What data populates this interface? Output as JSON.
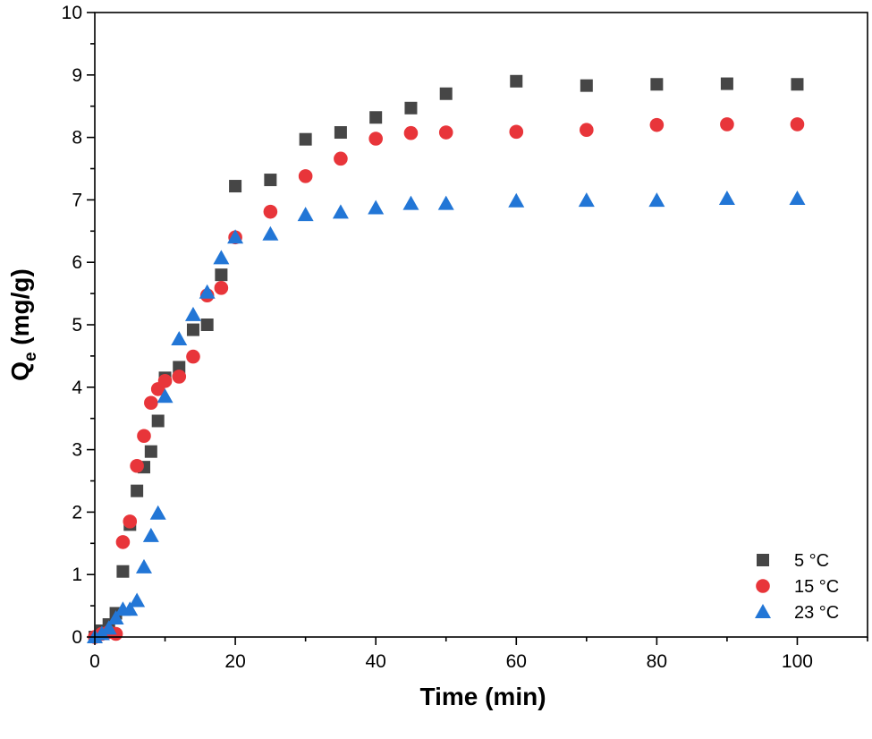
{
  "chart_data": {
    "type": "scatter",
    "xlabel": "Time (min)",
    "ylabel": "Q",
    "ylabel_sub": "e",
    "ylabel_unit": " (mg/g)",
    "xlim": [
      0,
      110
    ],
    "ylim": [
      0,
      10
    ],
    "xticks": [
      0,
      20,
      40,
      60,
      80,
      100
    ],
    "yticks": [
      0,
      1,
      2,
      3,
      4,
      5,
      6,
      7,
      8,
      9,
      10
    ],
    "grid": false,
    "legend_position": "bottom-right",
    "series": [
      {
        "name": "5 °C",
        "marker": "square",
        "color": "#464646",
        "x": [
          0,
          1,
          2,
          3,
          4,
          5,
          6,
          7,
          8,
          9,
          10,
          12,
          14,
          16,
          18,
          20,
          25,
          30,
          35,
          40,
          45,
          50,
          60,
          70,
          80,
          90,
          100
        ],
        "y": [
          0,
          0.1,
          0.2,
          0.38,
          1.05,
          1.8,
          2.34,
          2.72,
          2.97,
          3.46,
          4.15,
          4.32,
          4.92,
          5.0,
          5.8,
          7.22,
          7.32,
          7.97,
          8.08,
          8.32,
          8.47,
          8.7,
          8.9,
          8.83,
          8.85,
          8.86,
          8.85
        ]
      },
      {
        "name": "15 °C",
        "marker": "circle",
        "color": "#e8353a",
        "x": [
          0,
          1,
          2,
          3,
          4,
          5,
          6,
          7,
          8,
          9,
          10,
          12,
          14,
          16,
          18,
          20,
          25,
          30,
          35,
          40,
          45,
          50,
          60,
          70,
          80,
          90,
          100
        ],
        "y": [
          0,
          0.05,
          0.08,
          0.05,
          1.52,
          1.85,
          2.74,
          3.22,
          3.75,
          3.97,
          4.1,
          4.17,
          4.49,
          5.47,
          5.59,
          6.4,
          6.81,
          7.38,
          7.66,
          7.98,
          8.07,
          8.08,
          8.09,
          8.12,
          8.2,
          8.21,
          8.21
        ]
      },
      {
        "name": "23 °C",
        "marker": "triangle",
        "color": "#2276d6",
        "x": [
          0,
          1,
          2,
          3,
          4,
          5,
          6,
          7,
          8,
          9,
          10,
          12,
          14,
          16,
          18,
          20,
          25,
          30,
          35,
          40,
          45,
          50,
          60,
          70,
          80,
          90,
          100
        ],
        "y": [
          0,
          0.05,
          0.14,
          0.3,
          0.44,
          0.44,
          0.58,
          1.12,
          1.62,
          1.98,
          3.85,
          4.77,
          5.16,
          5.52,
          6.07,
          6.4,
          6.45,
          6.76,
          6.8,
          6.87,
          6.94,
          6.94,
          6.98,
          6.99,
          6.99,
          7.02,
          7.02
        ]
      }
    ]
  }
}
